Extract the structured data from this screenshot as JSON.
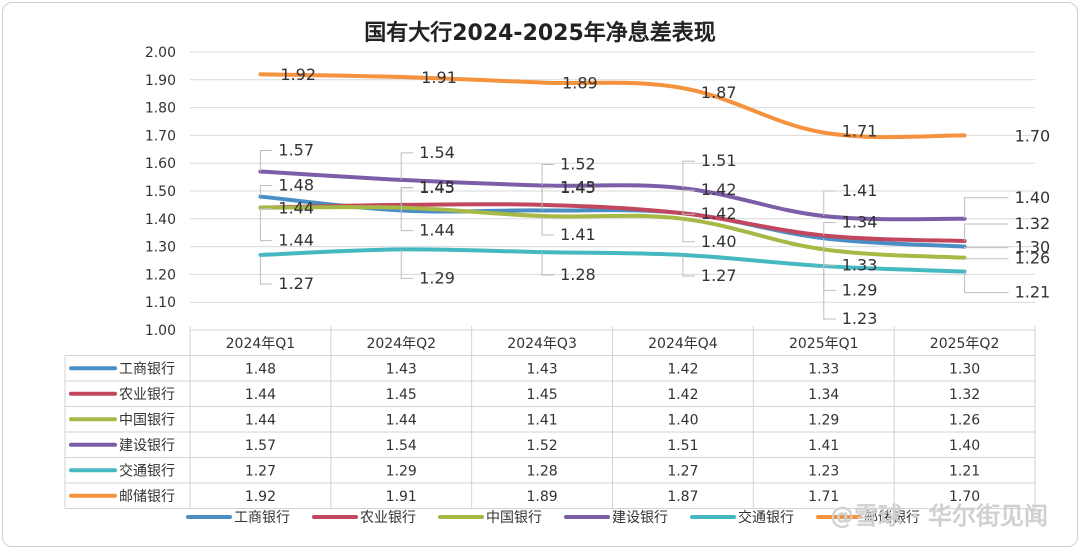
{
  "chart_data": {
    "type": "line",
    "title": "国有大行2024-2025年净息差表现",
    "categories": [
      "2024年Q1",
      "2024年Q2",
      "2024年Q3",
      "2024年Q4",
      "2025年Q1",
      "2025年Q2"
    ],
    "ylim": [
      1.0,
      2.0
    ],
    "yticks": [
      "1.00",
      "1.10",
      "1.20",
      "1.30",
      "1.40",
      "1.50",
      "1.60",
      "1.70",
      "1.80",
      "1.90",
      "2.00"
    ],
    "grid": true,
    "legend_position": "bottom",
    "data_table": true,
    "series": [
      {
        "name": "工商银行",
        "color": "#4a8ec4",
        "values": [
          1.48,
          1.43,
          1.43,
          1.42,
          1.33,
          1.3
        ],
        "labels": [
          "1.48",
          "1.43",
          "1.43",
          "1.42",
          "1.33",
          "1.30"
        ]
      },
      {
        "name": "农业银行",
        "color": "#c2475e",
        "values": [
          1.44,
          1.45,
          1.45,
          1.42,
          1.34,
          1.32
        ],
        "labels": [
          "1.44",
          "1.45",
          "1.45",
          "1.42",
          "1.34",
          "1.32"
        ]
      },
      {
        "name": "中国银行",
        "color": "#a7b845",
        "values": [
          1.44,
          1.44,
          1.41,
          1.4,
          1.29,
          1.26
        ],
        "labels": [
          "1.44",
          "1.44",
          "1.41",
          "1.40",
          "1.29",
          "1.26"
        ]
      },
      {
        "name": "建设银行",
        "color": "#7b5ea7",
        "values": [
          1.57,
          1.54,
          1.52,
          1.51,
          1.41,
          1.4
        ],
        "labels": [
          "1.57",
          "1.54",
          "1.52",
          "1.51",
          "1.41",
          "1.40"
        ]
      },
      {
        "name": "交通银行",
        "color": "#46b8c2",
        "values": [
          1.27,
          1.29,
          1.28,
          1.27,
          1.23,
          1.21
        ],
        "labels": [
          "1.27",
          "1.29",
          "1.28",
          "1.27",
          "1.23",
          "1.21"
        ]
      },
      {
        "name": "邮储银行",
        "color": "#f5923e",
        "values": [
          1.92,
          1.91,
          1.89,
          1.87,
          1.71,
          1.7
        ],
        "labels": [
          "1.92",
          "1.91",
          "1.89",
          "1.87",
          "1.71",
          "1.70"
        ]
      }
    ]
  },
  "watermark": {
    "text": "@雪球 · 华尔街见闻"
  }
}
